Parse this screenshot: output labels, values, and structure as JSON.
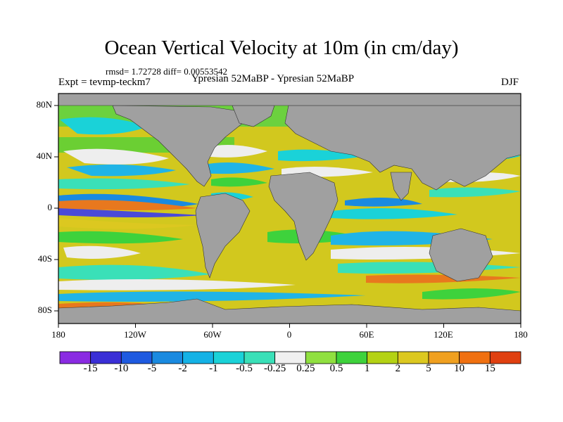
{
  "title": "Ocean Vertical Velocity at 10m (in cm/day)",
  "stats_line": "rmsd= 1.72728 diff= 0.00553542",
  "experiment_label": "Expt = tevmp-teckm7",
  "comparison_label": "Ypresian  52MaBP - Ypresian  52MaBP",
  "season_label": "DJF",
  "lat_labels": [
    "80N",
    "40N",
    "0",
    "40S",
    "80S"
  ],
  "lon_labels": [
    "180",
    "120W",
    "60W",
    "0",
    "60E",
    "120E",
    "180"
  ],
  "colorbar": {
    "labels": [
      "-15",
      "-10",
      "-5",
      "-2",
      "-1",
      "-0.5",
      "-0.25",
      "0.25",
      "0.5",
      "1",
      "2",
      "5",
      "10",
      "15"
    ],
    "colors": [
      "#8a2be2",
      "#3a2fd6",
      "#1e5ae0",
      "#1a8ae0",
      "#14b2e6",
      "#1ad2d8",
      "#3ae0b8",
      "#f0f0f0",
      "#90e040",
      "#3ed23c",
      "#b4d214",
      "#dcc820",
      "#f0a020",
      "#f07010",
      "#e04010"
    ]
  },
  "colors": {
    "land": "#a0a0a0",
    "ocean_base": "#d2c81e",
    "upwelling_strong": "#e8781e",
    "weak_band": "#eeeeee",
    "negative": "#20b4e6"
  }
}
